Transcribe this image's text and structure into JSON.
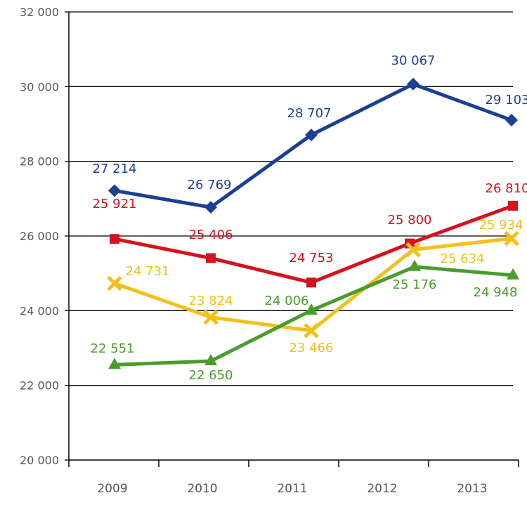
{
  "chart_data": {
    "type": "line",
    "title": "",
    "xlabel": "",
    "ylabel": "",
    "categories": [
      "2009",
      "2010",
      "2011",
      "2012",
      "2013"
    ],
    "ylim": [
      20000,
      32000
    ],
    "yticks": [
      20000,
      22000,
      24000,
      26000,
      28000,
      30000,
      32000
    ],
    "ytick_labels": [
      "20 000",
      "22 000",
      "24 000",
      "26 000",
      "28 000",
      "30 000",
      "32 000"
    ],
    "grid": true,
    "series": [
      {
        "name": "blue-series",
        "color": "#1c3f94",
        "marker": "diamond",
        "values": [
          27214,
          26769,
          28707,
          30067,
          29103
        ],
        "labels": [
          "27 214",
          "26 769",
          "28 707",
          "30 067",
          "29 103"
        ]
      },
      {
        "name": "red-series",
        "color": "#d5121e",
        "marker": "square",
        "values": [
          25921,
          25406,
          24753,
          25800,
          26810
        ],
        "labels": [
          "25 921",
          "25 406",
          "24 753",
          "25 800",
          "26 810"
        ]
      },
      {
        "name": "yellow-series",
        "color": "#f2c01a",
        "marker": "x",
        "values": [
          24731,
          23824,
          23466,
          25634,
          25934
        ],
        "labels": [
          "24 731",
          "23 824",
          "23 466",
          "25 634",
          "25 934"
        ]
      },
      {
        "name": "green-series",
        "color": "#4a9c2d",
        "marker": "triangle",
        "values": [
          22551,
          22650,
          24006,
          25176,
          24948
        ],
        "labels": [
          "22 551",
          "22 650",
          "24 006",
          "25 176",
          "24 948"
        ]
      }
    ]
  }
}
